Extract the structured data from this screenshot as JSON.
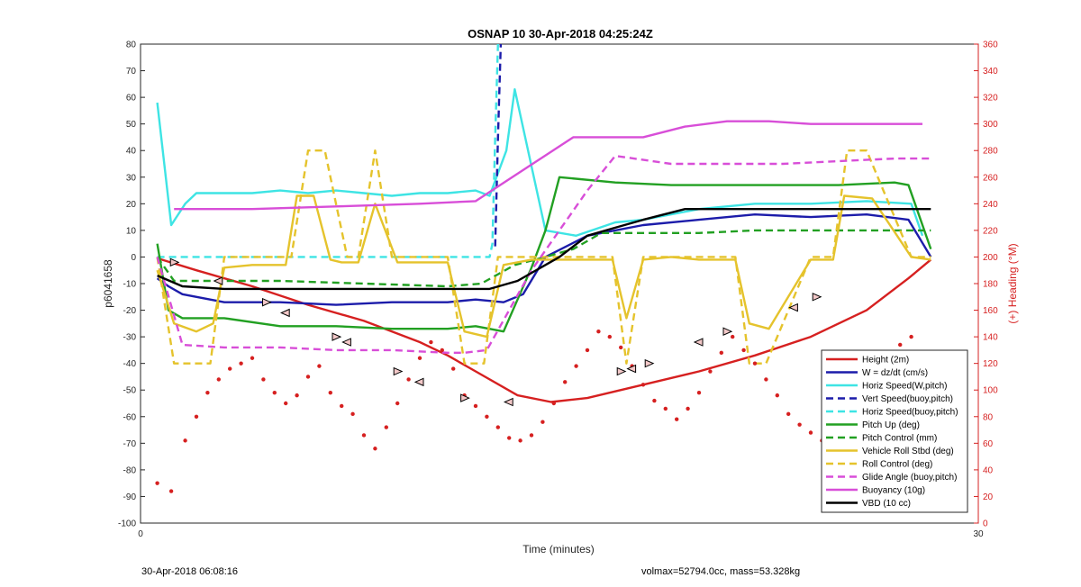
{
  "chart_data": {
    "type": "line",
    "title": "OSNAP 10 30-Apr-2018 04:25:24Z",
    "xlabel": "Time (minutes)",
    "ylabel": "p6041658",
    "ylabel_right": "(+) Heading (°M)",
    "xlim": [
      0,
      30
    ],
    "ylim": [
      -100,
      80
    ],
    "ylim_right": [
      0,
      360
    ],
    "x_ticks": [
      "0",
      "30"
    ],
    "y_ticks": [
      "-100",
      "-90",
      "-80",
      "-70",
      "-60",
      "-50",
      "-40",
      "-30",
      "-20",
      "-10",
      "0",
      "10",
      "20",
      "30",
      "40",
      "50",
      "60",
      "70",
      "80"
    ],
    "y_ticks_right": [
      "0",
      "20",
      "40",
      "60",
      "80",
      "100",
      "120",
      "140",
      "160",
      "180",
      "200",
      "220",
      "240",
      "260",
      "280",
      "300",
      "320",
      "340",
      "360"
    ],
    "grid": false,
    "legend_position": "bottom-right",
    "footer_left": "30-Apr-2018 06:08:16",
    "footer_right": "volmax=52794.0cc, mass=53.328kg",
    "series": [
      {
        "name": "Height (2m)",
        "color": "#d62020",
        "style": "solid",
        "x": [
          0.6,
          2,
          4,
          6,
          8,
          10,
          11,
          12,
          13.5,
          14.7,
          16,
          18,
          20,
          22,
          24,
          26,
          27.5,
          28.3
        ],
        "y": [
          -0.5,
          -5,
          -11,
          -18,
          -24,
          -32,
          -37,
          -43,
          -52,
          -54.5,
          -53,
          -48,
          -43,
          -37,
          -30,
          -20,
          -8,
          -1
        ]
      },
      {
        "name": "W = dz/dt (cm/s)",
        "color": "#1c1caa",
        "style": "solid",
        "x": [
          0.6,
          1,
          1.5,
          3,
          5,
          7,
          9,
          11,
          12,
          13,
          13.7,
          14.5,
          16,
          18,
          20,
          22,
          24,
          26,
          27.5,
          28.3
        ],
        "y": [
          -8,
          -11,
          -14,
          -17,
          -17,
          -18,
          -17,
          -17,
          -16,
          -17,
          -14,
          0,
          8,
          12,
          14,
          16,
          15,
          16,
          14,
          0
        ]
      },
      {
        "name": "Horiz Speed(W,pitch)",
        "color": "#3ee4e4",
        "style": "solid",
        "x": [
          0.6,
          1.1,
          1.6,
          2,
          3,
          4,
          5,
          6,
          7,
          8,
          9,
          10,
          11,
          12,
          12.5,
          13.1,
          13.4,
          14.5,
          15.6,
          17,
          18,
          20,
          22,
          24,
          26,
          27.6,
          28
        ],
        "y": [
          58,
          12,
          20,
          24,
          24,
          24,
          25,
          24,
          25,
          24,
          23,
          24,
          24,
          25,
          23,
          40,
          63,
          10,
          8,
          13,
          14,
          18,
          20,
          20,
          21,
          20,
          8
        ]
      },
      {
        "name": "Vert Speed(buoy,pitch)",
        "color": "#1c1caa",
        "style": "dashed",
        "x": [
          12.7,
          12.8,
          12.9
        ],
        "y": [
          4,
          45,
          80
        ]
      },
      {
        "name": "Horiz Speed(buoy,pitch)",
        "color": "#3ee4e4",
        "style": "dashed",
        "x": [
          0.6,
          4,
          8,
          11,
          12.5,
          12.6,
          12.7,
          12.8
        ],
        "y": [
          0,
          0,
          0,
          0,
          0,
          5,
          45,
          80
        ]
      },
      {
        "name": "Pitch Up (deg)",
        "color": "#22a022",
        "style": "solid",
        "x": [
          0.6,
          1,
          1.5,
          3,
          5,
          7,
          9,
          11,
          12,
          13,
          14,
          14.5,
          15,
          17,
          19,
          21,
          23,
          25,
          27,
          27.5,
          28.3
        ],
        "y": [
          5,
          -20,
          -23,
          -23,
          -26,
          -26,
          -27,
          -27,
          -26,
          -28,
          -4,
          10,
          30,
          28,
          27,
          27,
          27,
          27,
          28,
          27,
          3
        ]
      },
      {
        "name": "Pitch Control (mm)",
        "color": "#22a022",
        "style": "dashed",
        "x": [
          0.6,
          1.2,
          2,
          5,
          8,
          11,
          12.2,
          13.4,
          14.5,
          15.5,
          16.5,
          18,
          20,
          22,
          24,
          26,
          28,
          28.3
        ],
        "y": [
          0,
          -9,
          -9,
          -9,
          -10,
          -11,
          -10,
          -3,
          0,
          3,
          9,
          9,
          9,
          10,
          10,
          10,
          10,
          10
        ]
      },
      {
        "name": "Vehicle Roll Stbd (deg)",
        "color": "#e5c32c",
        "style": "solid",
        "x": [
          0.6,
          1.2,
          2,
          2.6,
          3,
          4,
          5.2,
          5.6,
          6.2,
          6.8,
          7.2,
          7.8,
          8.4,
          9.2,
          10,
          11,
          11.6,
          12.4,
          13,
          14,
          16,
          16.9,
          17.4,
          18,
          19,
          20,
          21.3,
          21.8,
          22.5,
          24,
          24.8,
          25.2,
          26.2,
          27.6,
          28.3
        ],
        "y": [
          -5,
          -25,
          -28,
          -25,
          -4,
          -3,
          -3,
          23,
          23,
          -1,
          -2,
          -2,
          20,
          -2,
          -2,
          -2,
          -28,
          -30,
          -3,
          -1,
          -1,
          -1,
          -23,
          -1,
          0,
          -1,
          -1,
          -25,
          -27,
          -1,
          -1,
          23,
          22,
          0,
          -1
        ]
      },
      {
        "name": "Roll Control (deg)",
        "color": "#e5c32c",
        "style": "dashed",
        "x": [
          0.6,
          1.2,
          2,
          2.5,
          3,
          4,
          5.4,
          6,
          6.6,
          7.4,
          7.8,
          8.4,
          9,
          10,
          11,
          11.6,
          12.3,
          12.8,
          13.5,
          16,
          16.9,
          17.4,
          18,
          19,
          20,
          21.3,
          21.8,
          22.4,
          24,
          24.8,
          25.3,
          26,
          27.6,
          28.3
        ],
        "y": [
          0,
          -40,
          -40,
          -40,
          0,
          0,
          0,
          40,
          40,
          0,
          0,
          40,
          0,
          0,
          0,
          -40,
          -40,
          0,
          0,
          0,
          0,
          -40,
          0,
          0,
          0,
          0,
          -40,
          -40,
          0,
          0,
          40,
          40,
          0,
          0
        ]
      },
      {
        "name": "Glide Angle (buoy,pitch)",
        "color": "#d84ed8",
        "style": "dashed",
        "x": [
          0.6,
          1.5,
          3,
          5,
          7,
          9,
          11,
          11.6,
          12.4,
          14,
          16,
          17,
          19,
          21,
          23,
          25,
          27,
          28.3
        ],
        "y": [
          0,
          -33,
          -34,
          -34,
          -35,
          -35,
          -36,
          -36,
          -35,
          -5,
          25,
          38,
          35,
          35,
          35,
          36,
          37,
          37
        ]
      },
      {
        "name": "Buoyancy (10g)",
        "color": "#d84ed8",
        "style": "solid",
        "x": [
          1.2,
          4,
          7,
          10,
          12,
          15.5,
          17,
          18,
          19.5,
          21,
          22.5,
          24,
          26,
          28
        ],
        "y": [
          18,
          18,
          19,
          20,
          21,
          45,
          45,
          45,
          49,
          51,
          51,
          50,
          50,
          50
        ]
      },
      {
        "name": "VBD (10 cc)",
        "color": "#000000",
        "style": "solid",
        "x": [
          0.6,
          1.5,
          3,
          5,
          8,
          11,
          12.5,
          13.5,
          15,
          16,
          17,
          18,
          19.5,
          22,
          25,
          28.3
        ],
        "y": [
          -7,
          -11,
          -12,
          -12,
          -12,
          -12,
          -12,
          -9,
          0,
          8,
          11,
          14,
          18,
          18,
          18,
          18
        ]
      }
    ],
    "heading_dots": {
      "name": "Heading (°M)",
      "color": "#d62020",
      "x": [
        0.6,
        1.1,
        1.6,
        2,
        2.4,
        2.8,
        3.2,
        3.6,
        4,
        4.4,
        4.8,
        5.2,
        5.6,
        6,
        6.4,
        6.8,
        7.2,
        7.6,
        8,
        8.4,
        8.8,
        9.2,
        9.6,
        10,
        10.4,
        10.8,
        11.2,
        11.6,
        12,
        12.4,
        12.8,
        13.2,
        13.6,
        14,
        14.4,
        14.8,
        15.2,
        15.6,
        16,
        16.4,
        16.8,
        17.2,
        17.6,
        18,
        18.4,
        18.8,
        19.2,
        19.6,
        20,
        20.4,
        20.8,
        21.2,
        21.6,
        22,
        22.4,
        22.8,
        23.2,
        23.6,
        24,
        24.4,
        24.8,
        25.2,
        25.6,
        26,
        26.4,
        26.8,
        27.2,
        27.6,
        28
      ],
      "y": [
        30,
        24,
        62,
        80,
        98,
        108,
        116,
        120,
        124,
        108,
        98,
        90,
        96,
        110,
        118,
        98,
        88,
        82,
        66,
        56,
        72,
        90,
        108,
        124,
        136,
        130,
        116,
        96,
        88,
        80,
        72,
        64,
        62,
        66,
        76,
        90,
        106,
        118,
        130,
        144,
        140,
        132,
        118,
        104,
        92,
        86,
        78,
        86,
        98,
        114,
        128,
        140,
        130,
        120,
        108,
        96,
        82,
        74,
        68,
        62,
        58,
        72,
        82,
        96,
        112,
        126,
        134,
        140,
        128
      ]
    },
    "height_markers": {
      "x": [
        1.2,
        2.8,
        4.5,
        5.2,
        7,
        7.4,
        9.2,
        10,
        11.6,
        13.2,
        17.2,
        17.6,
        18.2,
        20,
        21,
        23.4,
        24.2
      ],
      "y": [
        -2,
        -9,
        -17,
        -21,
        -30,
        -32,
        -43,
        -47,
        -53,
        -54.5,
        -43,
        -42,
        -40,
        -32,
        -28,
        -19,
        -15
      ]
    }
  }
}
